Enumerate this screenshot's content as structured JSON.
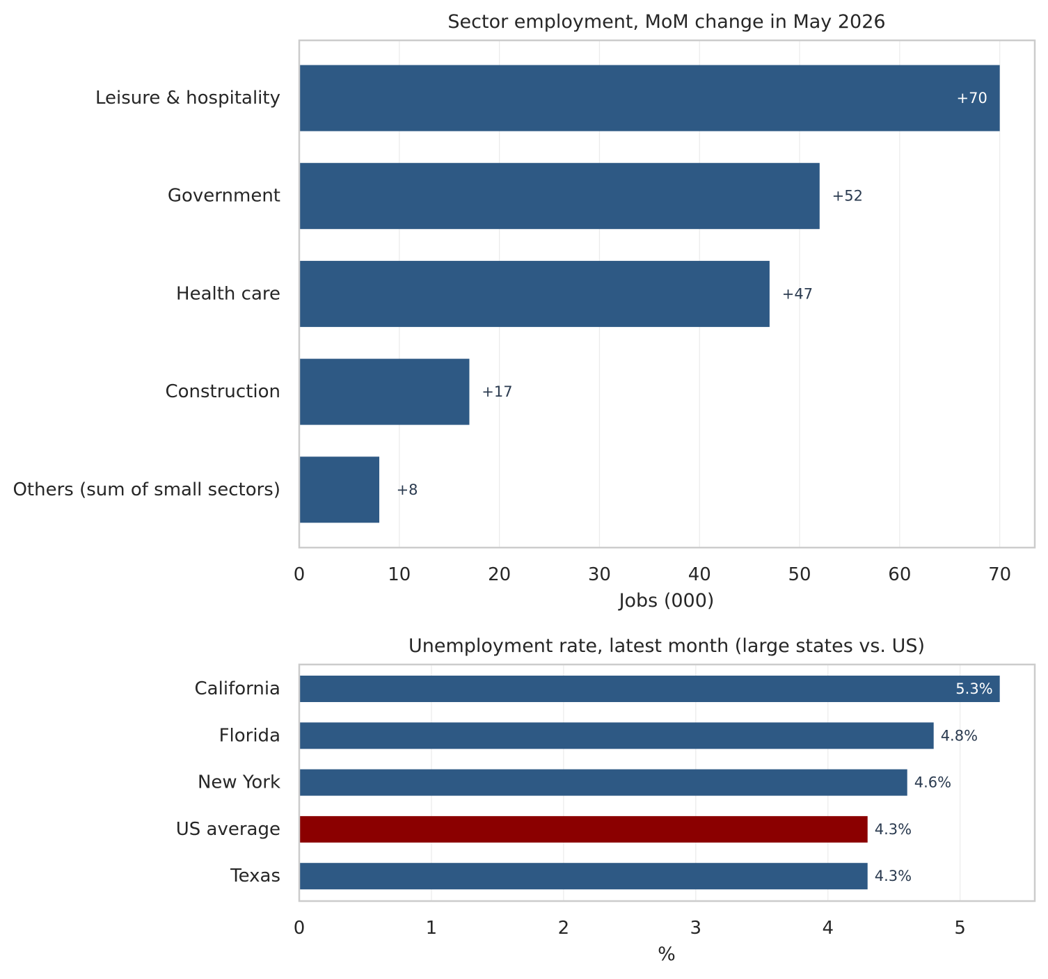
{
  "chart_data": [
    {
      "type": "bar",
      "orientation": "horizontal",
      "title": "Sector employment, MoM change in May 2026",
      "xlabel": "Jobs (000)",
      "ylabel": "",
      "categories": [
        "Leisure & hospitality",
        "Government",
        "Health care",
        "Construction",
        "Others (sum of small sectors)"
      ],
      "values": [
        70,
        52,
        47,
        17,
        8
      ],
      "data_labels": [
        "+70",
        "+52",
        "+47",
        "+17",
        "+8"
      ],
      "xlim": [
        0,
        73.5
      ],
      "xticks": [
        0,
        10,
        20,
        30,
        40,
        50,
        60,
        70
      ],
      "tick_labels": [
        "0",
        "10",
        "20",
        "30",
        "40",
        "50",
        "60",
        "70"
      ],
      "grid": "vertical",
      "colors": {
        "bar": "#2e5984",
        "label_inside": "#ffffff",
        "label_outside": "#2a3a4f"
      }
    },
    {
      "type": "bar",
      "orientation": "horizontal",
      "title": "Unemployment rate, latest month (large states vs. US)",
      "xlabel": "%",
      "ylabel": "",
      "categories": [
        "California",
        "Florida",
        "New York",
        "US average",
        "Texas"
      ],
      "values": [
        5.3,
        4.8,
        4.6,
        4.3,
        4.3
      ],
      "data_labels": [
        "5.3%",
        "4.8%",
        "4.6%",
        "4.3%",
        "4.3%"
      ],
      "highlight": "US average",
      "xlim": [
        0,
        5.565
      ],
      "xticks": [
        0,
        1,
        2,
        3,
        4,
        5
      ],
      "tick_labels": [
        "0",
        "1",
        "2",
        "3",
        "4",
        "5"
      ],
      "grid": "vertical",
      "colors": {
        "bar": "#2e5984",
        "highlight": "#8b0000",
        "label_inside": "#ffffff",
        "label_outside": "#2a3a4f"
      }
    }
  ]
}
